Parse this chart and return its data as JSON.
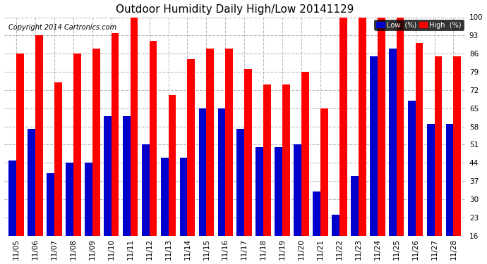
{
  "title": "Outdoor Humidity Daily High/Low 20141129",
  "copyright": "Copyright 2014 Cartronics.com",
  "dates": [
    "11/05",
    "11/06",
    "11/07",
    "11/08",
    "11/09",
    "11/10",
    "11/11",
    "11/12",
    "11/13",
    "11/14",
    "11/15",
    "11/16",
    "11/17",
    "11/18",
    "11/19",
    "11/20",
    "11/21",
    "11/22",
    "11/23",
    "11/24",
    "11/25",
    "11/26",
    "11/27",
    "11/28"
  ],
  "high": [
    86,
    93,
    75,
    86,
    88,
    94,
    100,
    91,
    70,
    84,
    88,
    88,
    80,
    74,
    74,
    79,
    65,
    100,
    100,
    100,
    100,
    90,
    85,
    85
  ],
  "low": [
    45,
    57,
    40,
    44,
    44,
    62,
    62,
    51,
    46,
    46,
    65,
    65,
    57,
    50,
    50,
    51,
    33,
    24,
    39,
    85,
    88,
    68,
    59,
    59
  ],
  "bar_width": 0.4,
  "high_color": "#ff0000",
  "low_color": "#0000cc",
  "bg_color": "#ffffff",
  "grid_color": "#bbbbbb",
  "ylim_min": 16,
  "ylim_max": 100,
  "yticks": [
    16,
    23,
    30,
    37,
    44,
    51,
    58,
    65,
    72,
    79,
    86,
    93,
    100
  ],
  "title_fontsize": 11,
  "tick_fontsize": 7.5,
  "copyright_fontsize": 7,
  "legend_low_label": "Low  (%)",
  "legend_high_label": "High  (%)"
}
